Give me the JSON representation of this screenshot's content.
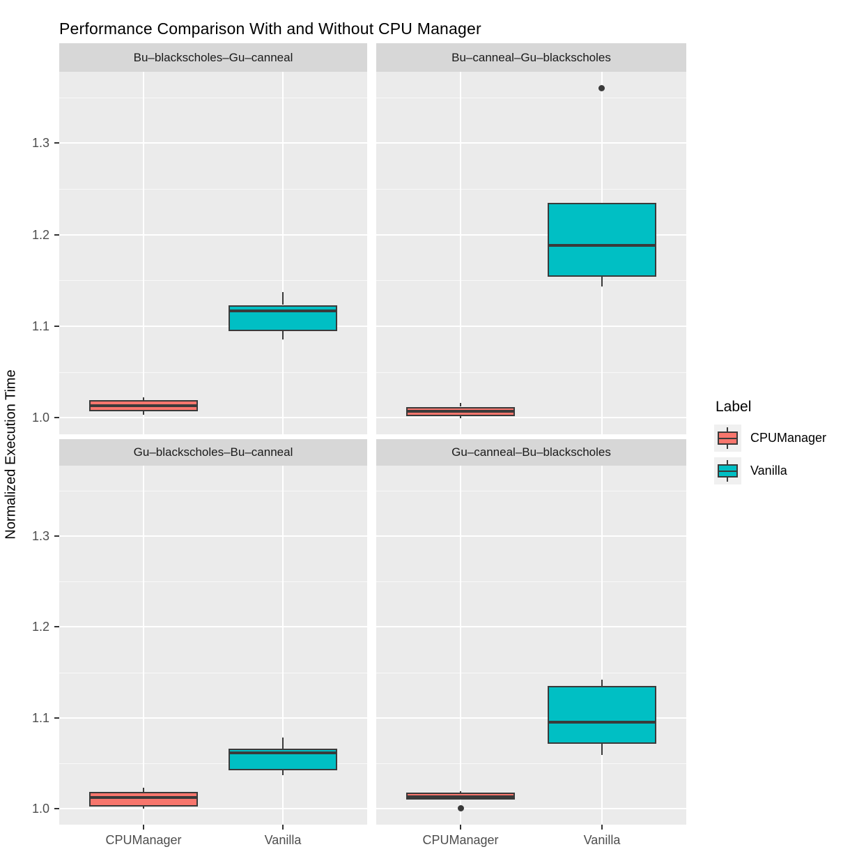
{
  "title": "Performance Comparison With and Without CPU Manager",
  "y_axis": {
    "label": "Normalized Execution Time",
    "tick_labels": [
      "1.0",
      "1.1",
      "1.2",
      "1.3"
    ],
    "tick_values": [
      1.0,
      1.1,
      1.2,
      1.3
    ],
    "minor_values": [
      1.05,
      1.15,
      1.25,
      1.35
    ],
    "range": [
      0.982,
      1.378
    ]
  },
  "x_axis": {
    "categories": [
      "CPUManager",
      "Vanilla"
    ]
  },
  "legend": {
    "title": "Label",
    "entries": [
      {
        "label": "CPUManager",
        "color": "#F8766D"
      },
      {
        "label": "Vanilla",
        "color": "#00BFC4"
      }
    ]
  },
  "colors": {
    "panel_background": "#EBEBEB",
    "strip_background": "#D7D7D7",
    "grid_major": "#FFFFFF",
    "box_outline": "#3A3A3A",
    "tick_text": "#4D4D4D"
  },
  "chart_data": {
    "type": "boxplot",
    "title": "Performance Comparison With and Without CPU Manager",
    "ylabel": "Normalized Execution Time",
    "ylim": [
      0.982,
      1.378
    ],
    "grid": true,
    "legend_position": "right",
    "categories": [
      "CPUManager",
      "Vanilla"
    ],
    "facets": [
      {
        "label": "Bu–blackscholes–Gu–canneal",
        "row": 0,
        "col": 0,
        "boxes": [
          {
            "group": "CPUManager",
            "min": 1.003,
            "q1": 1.007,
            "median": 1.013,
            "q3": 1.019,
            "max": 1.022,
            "outliers": []
          },
          {
            "group": "Vanilla",
            "min": 1.086,
            "q1": 1.095,
            "median": 1.117,
            "q3": 1.123,
            "max": 1.137,
            "outliers": []
          }
        ]
      },
      {
        "label": "Bu–canneal–Gu–blackscholes",
        "row": 0,
        "col": 1,
        "boxes": [
          {
            "group": "CPUManager",
            "min": 1.0,
            "q1": 1.002,
            "median": 1.007,
            "q3": 1.012,
            "max": 1.016,
            "outliers": []
          },
          {
            "group": "Vanilla",
            "min": 1.143,
            "q1": 1.154,
            "median": 1.188,
            "q3": 1.235,
            "max": 1.235,
            "outliers": [
              1.36
            ]
          }
        ]
      },
      {
        "label": "Gu–blackscholes–Bu–canneal",
        "row": 1,
        "col": 0,
        "boxes": [
          {
            "group": "CPUManager",
            "min": 1.0,
            "q1": 1.002,
            "median": 1.012,
            "q3": 1.018,
            "max": 1.023,
            "outliers": []
          },
          {
            "group": "Vanilla",
            "min": 1.037,
            "q1": 1.042,
            "median": 1.061,
            "q3": 1.066,
            "max": 1.078,
            "outliers": []
          }
        ]
      },
      {
        "label": "Gu–canneal–Bu–blackscholes",
        "row": 1,
        "col": 1,
        "boxes": [
          {
            "group": "CPUManager",
            "min": 1.009,
            "q1": 1.009,
            "median": 1.013,
            "q3": 1.017,
            "max": 1.019,
            "outliers": [
              1.0
            ]
          },
          {
            "group": "Vanilla",
            "min": 1.059,
            "q1": 1.071,
            "median": 1.095,
            "q3": 1.135,
            "max": 1.142,
            "outliers": []
          }
        ]
      }
    ]
  }
}
